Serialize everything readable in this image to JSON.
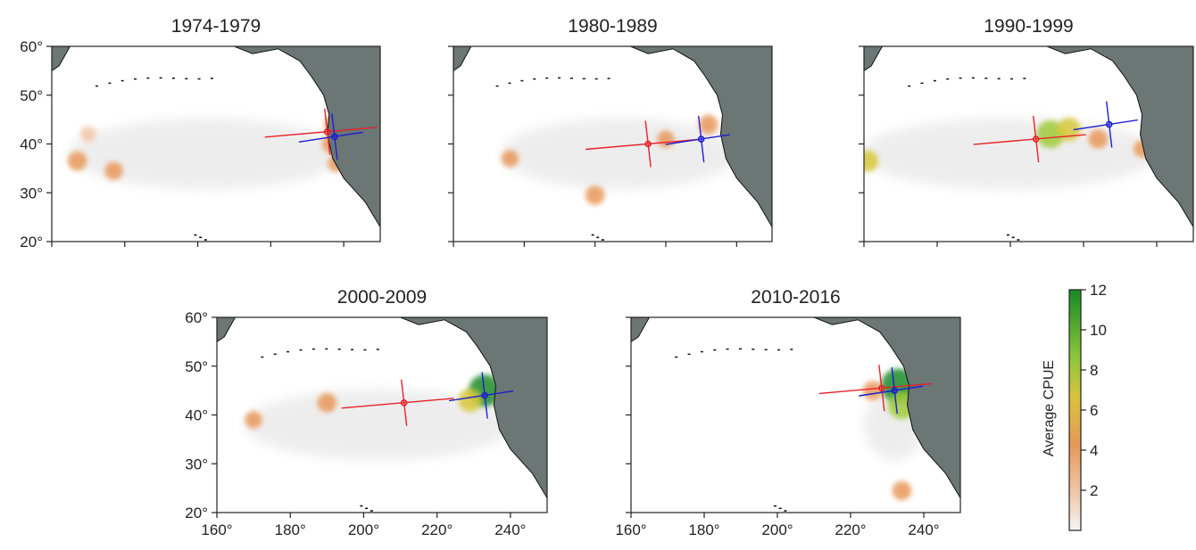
{
  "chart_data": [
    {
      "type": "heatmap",
      "title": "1974-1979",
      "xlim": [
        160,
        250
      ],
      "ylim": [
        20,
        60
      ],
      "x_ticks": [
        160,
        180,
        200,
        220,
        240
      ],
      "y_ticks": [
        "60°",
        "50°",
        "40°",
        "30°",
        "20°"
      ],
      "x_tick_labels": [],
      "hotspots": [
        {
          "lon": 237.5,
          "lat": 44,
          "value": 4.5
        },
        {
          "lon": 236.5,
          "lat": 40,
          "value": 3.5
        },
        {
          "lon": 238,
          "lat": 36,
          "value": 3
        },
        {
          "lon": 167,
          "lat": 36.5,
          "value": 4
        },
        {
          "lon": 177,
          "lat": 34.5,
          "value": 3.5
        },
        {
          "lon": 170,
          "lat": 42,
          "value": 2.5
        }
      ],
      "centroids": [
        {
          "series": "red",
          "lon": 235.5,
          "lat": 42.5
        },
        {
          "series": "blue",
          "lon": 237.5,
          "lat": 41.5
        }
      ]
    },
    {
      "type": "heatmap",
      "title": "1980-1989",
      "xlim": [
        160,
        250
      ],
      "ylim": [
        20,
        60
      ],
      "x_ticks": [
        160,
        180,
        200,
        220,
        240
      ],
      "y_ticks": [],
      "x_tick_labels": [],
      "hotspots": [
        {
          "lon": 232,
          "lat": 44,
          "value": 4
        },
        {
          "lon": 220,
          "lat": 41,
          "value": 3
        },
        {
          "lon": 176,
          "lat": 37,
          "value": 3
        },
        {
          "lon": 200,
          "lat": 29.5,
          "value": 4
        }
      ],
      "centroids": [
        {
          "series": "red",
          "lon": 215,
          "lat": 40
        },
        {
          "series": "blue",
          "lon": 230,
          "lat": 41
        }
      ]
    },
    {
      "type": "heatmap",
      "title": "1990-1999",
      "xlim": [
        160,
        250
      ],
      "ylim": [
        20,
        60
      ],
      "x_ticks": [
        160,
        180,
        200,
        220,
        240
      ],
      "y_ticks": [],
      "x_tick_labels": [],
      "hotspots": [
        {
          "lon": 211,
          "lat": 42,
          "value": 8
        },
        {
          "lon": 216,
          "lat": 43,
          "value": 6
        },
        {
          "lon": 224,
          "lat": 41,
          "value": 4
        },
        {
          "lon": 161,
          "lat": 36.5,
          "value": 5
        },
        {
          "lon": 236,
          "lat": 39,
          "value": 3
        }
      ],
      "centroids": [
        {
          "series": "red",
          "lon": 207,
          "lat": 41
        },
        {
          "series": "blue",
          "lon": 227,
          "lat": 44
        }
      ]
    },
    {
      "type": "heatmap",
      "title": "2000-2009",
      "xlim": [
        160,
        250
      ],
      "ylim": [
        20,
        60
      ],
      "x_ticks": [
        160,
        180,
        200,
        220,
        240
      ],
      "y_ticks": [
        "60°",
        "50°",
        "40°",
        "30°",
        "20°"
      ],
      "x_tick_labels": [
        "160°",
        "180°",
        "200°",
        "220°",
        "240°"
      ],
      "hotspots": [
        {
          "lon": 233,
          "lat": 45,
          "value": 10
        },
        {
          "lon": 229,
          "lat": 43,
          "value": 6
        },
        {
          "lon": 190,
          "lat": 42.5,
          "value": 4
        },
        {
          "lon": 170,
          "lat": 39,
          "value": 3
        }
      ],
      "centroids": [
        {
          "series": "red",
          "lon": 211,
          "lat": 42.5
        },
        {
          "series": "blue",
          "lon": 233,
          "lat": 44
        }
      ]
    },
    {
      "type": "heatmap",
      "title": "2010-2016",
      "xlim": [
        160,
        250
      ],
      "ylim": [
        20,
        60
      ],
      "x_ticks": [
        160,
        180,
        200,
        220,
        240
      ],
      "y_ticks": [],
      "x_tick_labels": [
        "160°",
        "180°",
        "200°",
        "220°",
        "240°"
      ],
      "hotspots": [
        {
          "lon": 233,
          "lat": 46,
          "value": 11
        },
        {
          "lon": 234,
          "lat": 42,
          "value": 8
        },
        {
          "lon": 226,
          "lat": 45,
          "value": 4
        },
        {
          "lon": 234,
          "lat": 24.5,
          "value": 4
        }
      ],
      "centroids": [
        {
          "series": "red",
          "lon": 228.5,
          "lat": 45.5
        },
        {
          "series": "blue",
          "lon": 232,
          "lat": 45
        }
      ]
    }
  ],
  "colorbar": {
    "label": "Average CPUE",
    "ticks": [
      "12",
      "10",
      "8",
      "6",
      "4",
      "2"
    ],
    "range": [
      0,
      12
    ]
  },
  "colors": {
    "land": "#6b7675",
    "centroid_red": "#e8212a",
    "centroid_blue": "#1d1dd0",
    "light": "#ececec",
    "low": "#f3c8a8",
    "mid": "#e8985a",
    "high": "#d7c83a",
    "top": "#1b8a2b"
  }
}
